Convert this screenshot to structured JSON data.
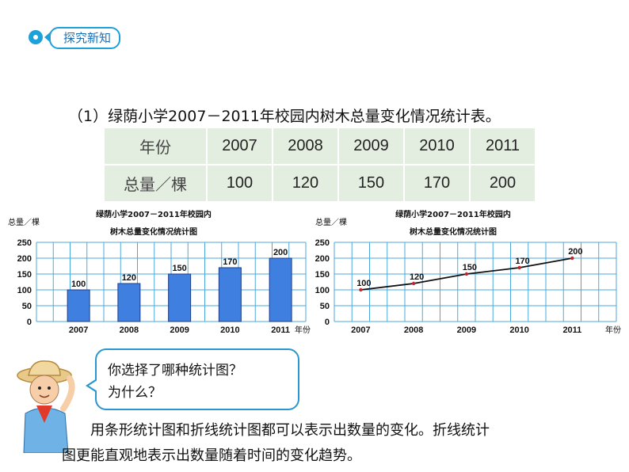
{
  "header": {
    "tag": "探究新知"
  },
  "question_title": "（1）绿荫小学2007－2011年校园内树木总量变化情况统计表。",
  "table": {
    "row1_header": "年份",
    "row2_header": "总量／棵",
    "years": [
      "2007",
      "2008",
      "2009",
      "2010",
      "2011"
    ],
    "totals": [
      "100",
      "120",
      "150",
      "170",
      "200"
    ]
  },
  "chart_data": [
    {
      "type": "bar",
      "title_line1": "绿荫小学2007－2011年校园内",
      "title_line2": "树木总量变化情况统计图",
      "ylabel": "总量／棵",
      "xlabel": "年份",
      "categories": [
        "2007",
        "2008",
        "2009",
        "2010",
        "2011"
      ],
      "values": [
        100,
        120,
        150,
        170,
        200
      ],
      "value_labels": [
        "100",
        "120",
        "150",
        "170",
        "200"
      ],
      "yticks": [
        "0",
        "50",
        "100",
        "150",
        "200",
        "250"
      ],
      "ylim": [
        0,
        250
      ],
      "grid": true,
      "color": "#3f7fe0"
    },
    {
      "type": "line",
      "title_line1": "绿荫小学2007－2011年校园内",
      "title_line2": "树木总量变化情况统计图",
      "ylabel": "总量／棵",
      "xlabel": "年份",
      "categories": [
        "2007",
        "2008",
        "2009",
        "2010",
        "2011"
      ],
      "values": [
        100,
        120,
        150,
        170,
        200
      ],
      "value_labels": [
        "100",
        "120",
        "150",
        "170",
        "200"
      ],
      "yticks": [
        "0",
        "50",
        "100",
        "150",
        "200",
        "250"
      ],
      "ylim": [
        0,
        250
      ],
      "grid": true,
      "color": "#111111"
    }
  ],
  "bubble": {
    "line1": "你选择了哪种统计图？",
    "line2": "为什么？"
  },
  "answer": {
    "line1": "用条形统计图和折线统计图都可以表示出数量的变化。折线统计",
    "line2": "图更能直观地表示出数量随着时间的变化趋势。"
  },
  "colors": {
    "accent": "#1ea0d9",
    "grid": "#4aa8dc",
    "table_bg": "#e3eee0"
  }
}
